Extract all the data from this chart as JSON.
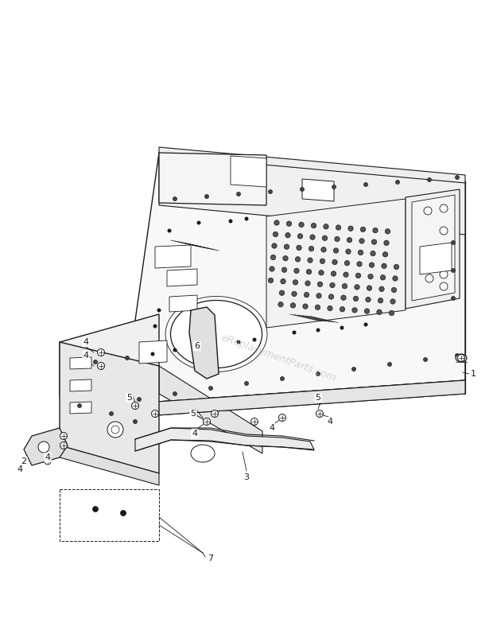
{
  "bg_color": "#ffffff",
  "line_color": "#1a1a1a",
  "fig_width": 6.2,
  "fig_height": 8.02,
  "dpi": 100,
  "watermark": "eReplacementParts.com",
  "watermark_color": "#bbbbbb"
}
